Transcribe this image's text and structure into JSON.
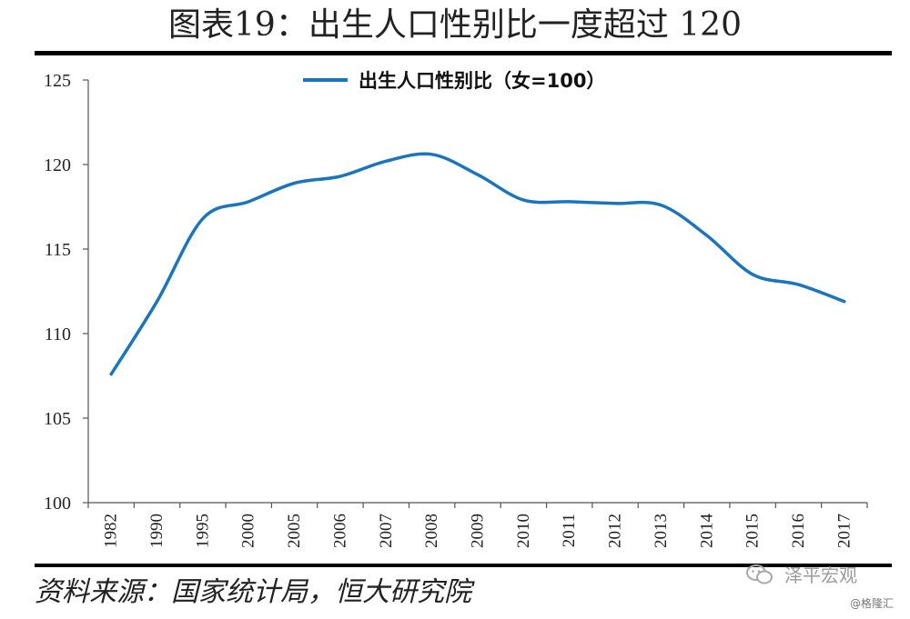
{
  "page": {
    "title": "图表19：出生人口性别比一度超过 120",
    "source": "资料来源：国家统计局，恒大研究院",
    "watermark": "泽平宏观",
    "watermark_icon": "wechat-icon",
    "watermark_small": "@格隆汇"
  },
  "chart_data": {
    "type": "line",
    "title": "图表19：出生人口性别比一度超过 120",
    "categories": [
      "1982",
      "1990",
      "1995",
      "2000",
      "2005",
      "2006",
      "2007",
      "2008",
      "2009",
      "2010",
      "2011",
      "2012",
      "2013",
      "2014",
      "2015",
      "2016",
      "2017"
    ],
    "series": [
      {
        "name": "出生人口性别比（女=100）",
        "color": "#1b75bc",
        "values": [
          107.6,
          111.9,
          116.8,
          117.8,
          118.9,
          119.3,
          120.2,
          120.6,
          119.4,
          117.9,
          117.8,
          117.7,
          117.6,
          115.8,
          113.5,
          112.9,
          111.9
        ]
      }
    ],
    "ylim": [
      100,
      125
    ],
    "yticks": [
      100,
      105,
      110,
      115,
      120,
      125
    ],
    "xlabel": "",
    "ylabel": "",
    "grid": false,
    "legend": "top-center",
    "smooth": true
  }
}
